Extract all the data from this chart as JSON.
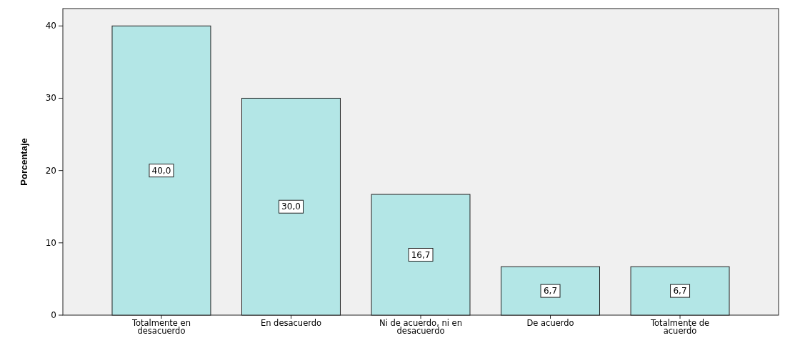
{
  "chart_data": {
    "type": "bar",
    "ylabel": "Porcentaje",
    "categories": [
      "Totalmente en desacuerdo",
      "En desacuerdo",
      "Ni de acuerdo, ni en desacuerdo",
      "De acuerdo",
      "Totalmente de acuerdo"
    ],
    "values": [
      40.0,
      30.0,
      16.7,
      6.7,
      6.7
    ],
    "value_labels": [
      "40,0",
      "30,0",
      "16,7",
      "6,7",
      "6,7"
    ],
    "color": "#b3e6e6",
    "ylim": [
      0,
      42.4
    ],
    "yticks": [
      0,
      10,
      20,
      30,
      40
    ],
    "grid": false
  }
}
